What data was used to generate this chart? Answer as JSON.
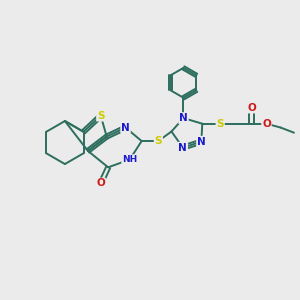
{
  "background_color": "#ebebeb",
  "bond_color": "#2d6e5e",
  "atom_colors": {
    "N": "#1a1acc",
    "O": "#cc1a1a",
    "S": "#cccc00",
    "C": "#2d6e5e"
  },
  "fig_width": 3.0,
  "fig_height": 3.0,
  "dpi": 100
}
